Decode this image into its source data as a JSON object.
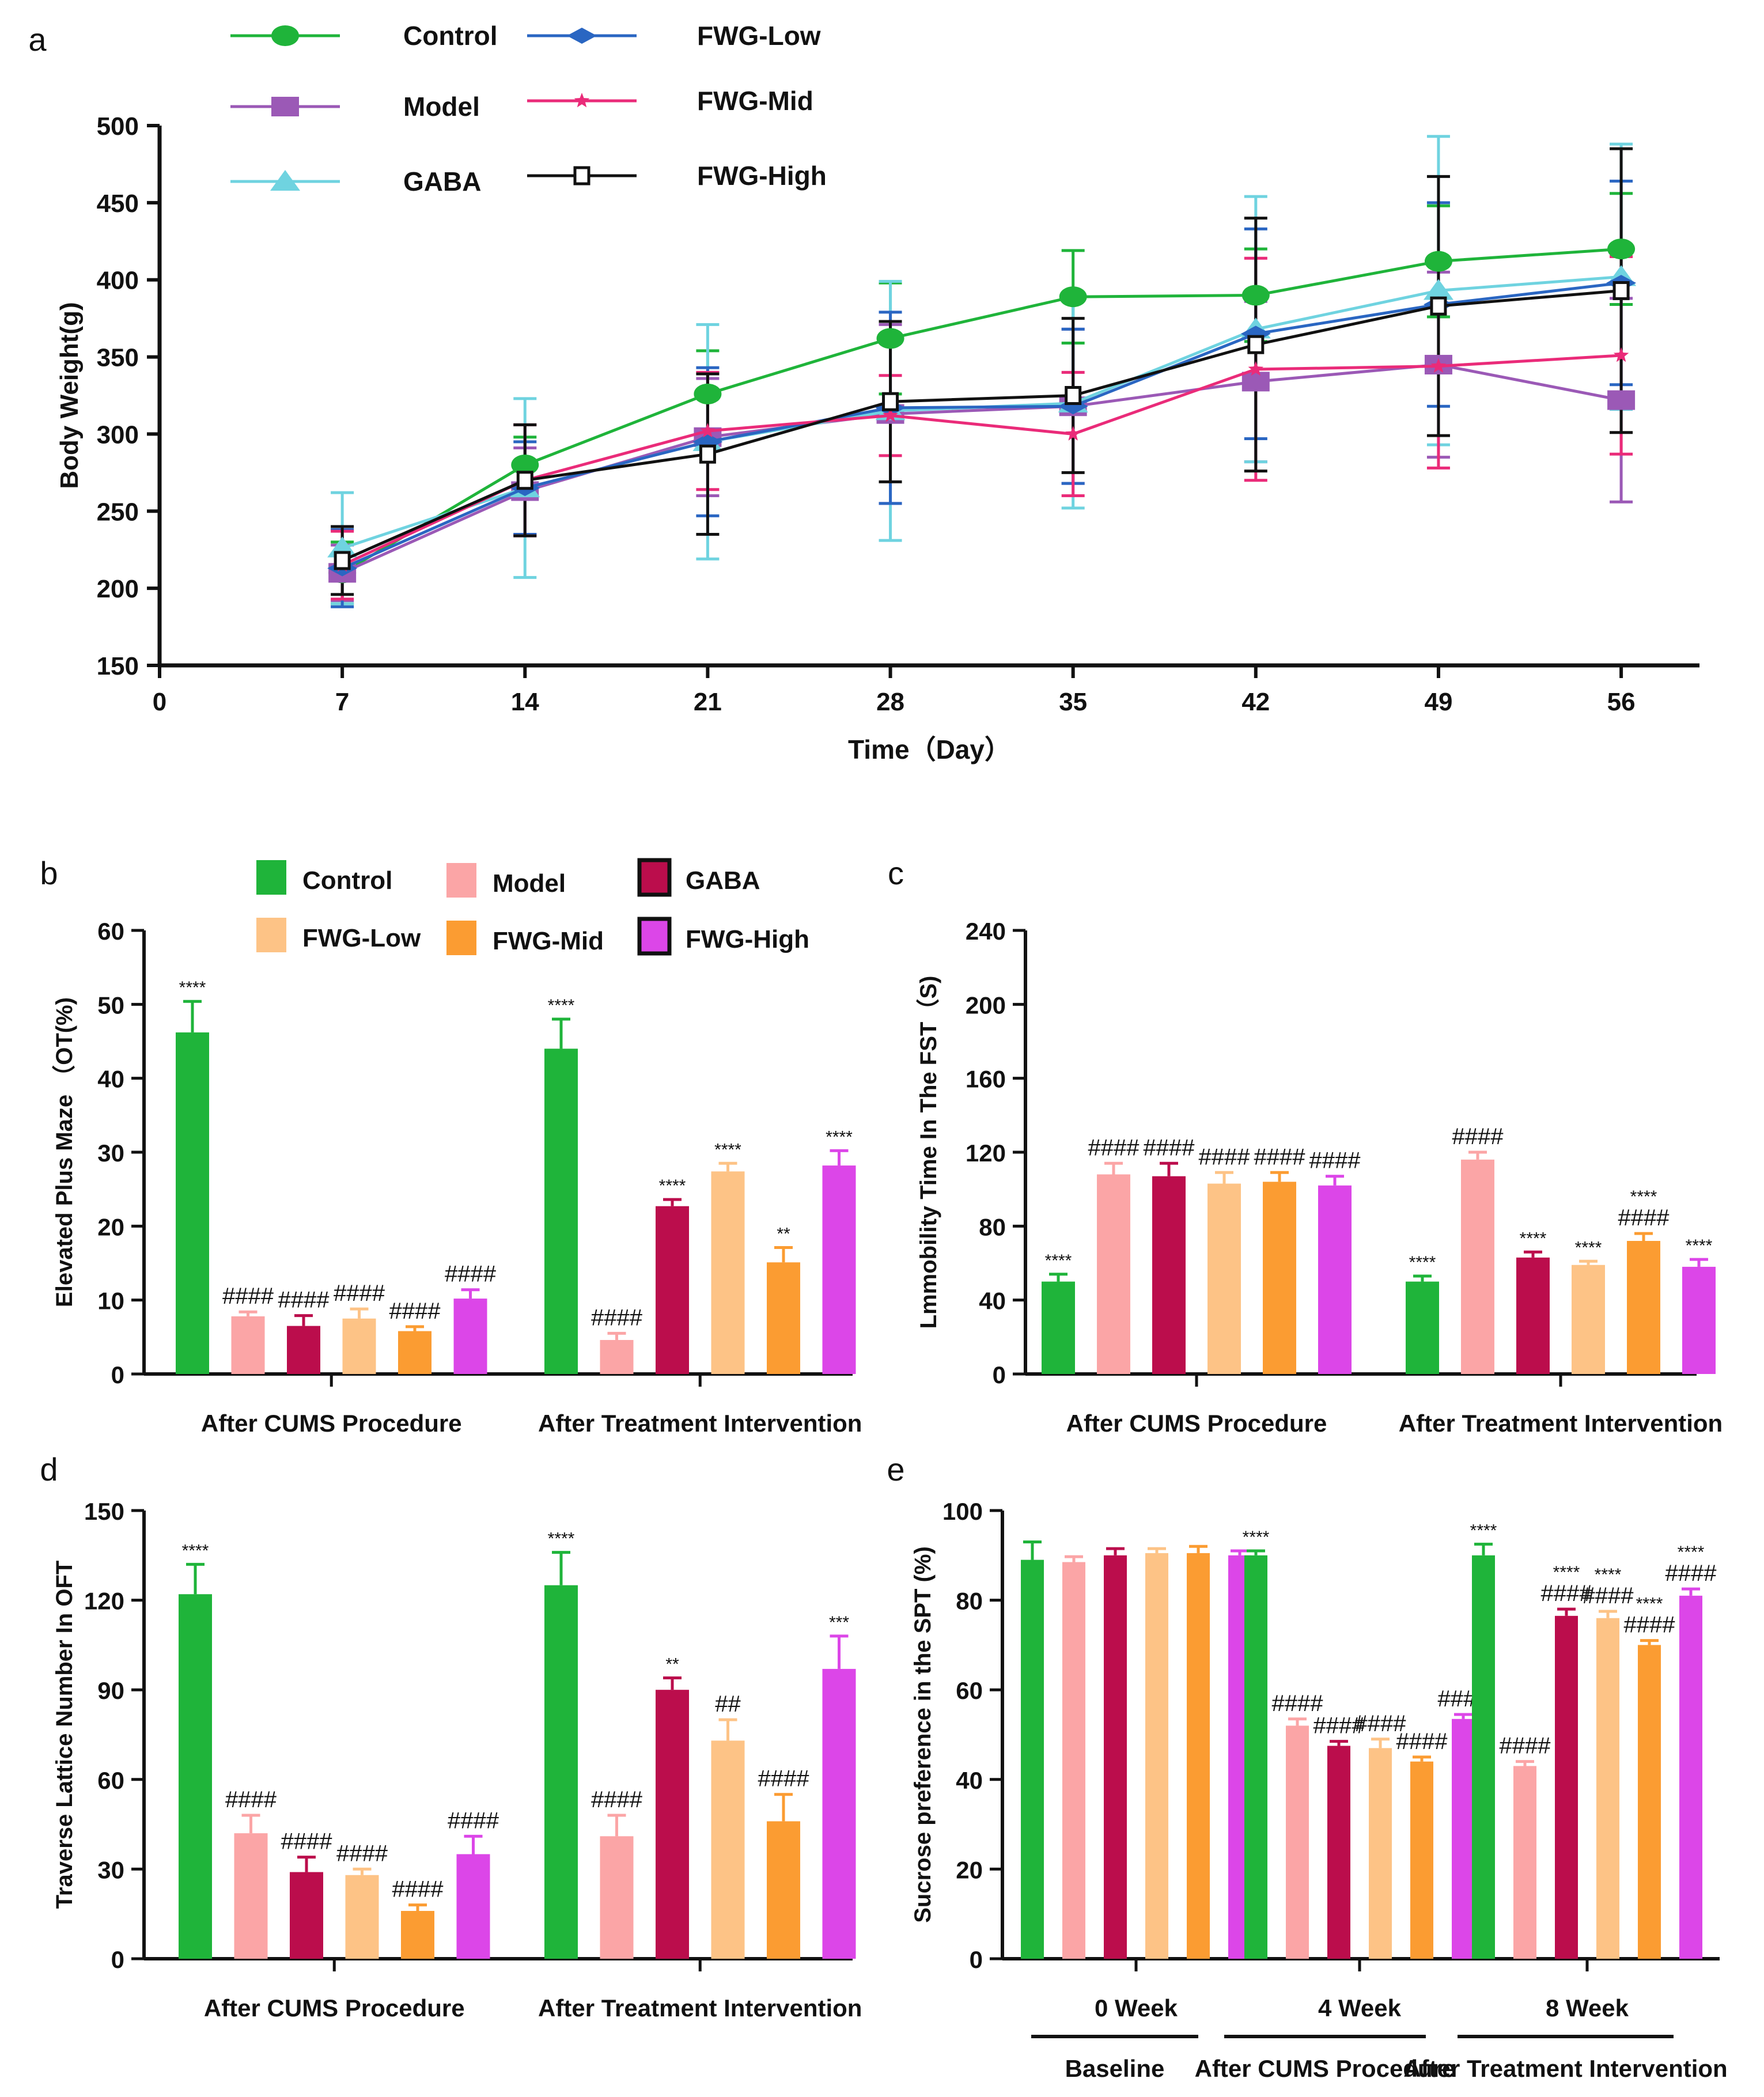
{
  "colors": {
    "Control": "#1fb43a",
    "Model": "#fba5a6",
    "GABA": "#bb0d4c",
    "FWG-Low": "#fdc386",
    "FWG-Mid": "#fb9c32",
    "FWG-High": "#dc46e8",
    "lineControl": "#1fb43a",
    "lineModel": "#9b59b6",
    "lineGABA": "#6fd3e0",
    "lineFWG-Low": "#2a66c2",
    "lineFWG-Mid": "#ea2b79",
    "lineFWG-High": "#111111"
  },
  "chart_data": [
    {
      "panel": "a",
      "type": "line",
      "xlabel": "Time（Day）",
      "ylabel": "Body Weight(g)",
      "xlim": [
        0,
        59
      ],
      "ylim": [
        150,
        500
      ],
      "xticks": [
        0,
        7,
        14,
        21,
        28,
        35,
        42,
        49,
        56
      ],
      "yticks": [
        150,
        200,
        250,
        300,
        350,
        400,
        450,
        500
      ],
      "x": [
        7,
        14,
        21,
        28,
        35,
        42,
        49,
        56
      ],
      "legend": [
        "Control",
        "FWG-Low",
        "Model",
        "FWG-Mid",
        "GABA",
        "FWG-High"
      ],
      "series": [
        {
          "name": "Control",
          "marker": "circle",
          "values": [
            210,
            280,
            326,
            362,
            389,
            390,
            412,
            420
          ],
          "errors": [
            20,
            18,
            28,
            36,
            30,
            30,
            36,
            36
          ]
        },
        {
          "name": "Model",
          "marker": "square",
          "values": [
            210,
            263,
            298,
            313,
            318,
            334,
            345,
            322
          ],
          "errors": [
            18,
            28,
            38,
            58,
            50,
            52,
            60,
            66
          ]
        },
        {
          "name": "GABA",
          "marker": "triangle",
          "values": [
            226,
            265,
            295,
            315,
            320,
            368,
            393,
            402
          ],
          "errors": [
            36,
            58,
            76,
            84,
            68,
            86,
            100,
            86
          ]
        },
        {
          "name": "FWG-Low",
          "marker": "diamond",
          "values": [
            213,
            265,
            295,
            317,
            318,
            365,
            384,
            398
          ],
          "errors": [
            25,
            30,
            48,
            62,
            50,
            68,
            66,
            66
          ]
        },
        {
          "name": "FWG-Mid",
          "marker": "star",
          "values": [
            215,
            270,
            302,
            312,
            300,
            342,
            344,
            351
          ],
          "errors": [
            22,
            36,
            38,
            26,
            40,
            72,
            66,
            64
          ]
        },
        {
          "name": "FWG-High",
          "marker": "open-square",
          "values": [
            218,
            270,
            287,
            321,
            325,
            358,
            383,
            393
          ],
          "errors": [
            22,
            36,
            52,
            52,
            50,
            82,
            84,
            92
          ]
        }
      ]
    },
    {
      "panel": "b",
      "type": "bar",
      "ylabel": "Elevated Plus Maze （OT(%)",
      "ylim": [
        0,
        60
      ],
      "yticks": [
        0,
        10,
        20,
        30,
        40,
        50,
        60
      ],
      "groups": [
        "After CUMS Procedure",
        "After Treatment Intervention"
      ],
      "legend": [
        "Control",
        "Model",
        "GABA",
        "FWG-Low",
        "FWG-Mid",
        "FWG-High"
      ],
      "series": [
        {
          "name": "Control",
          "values": [
            46.2,
            44.0
          ],
          "errors": [
            4.2,
            4.0
          ],
          "labels": [
            "****",
            "****"
          ]
        },
        {
          "name": "Model",
          "values": [
            7.8,
            4.6
          ],
          "errors": [
            0.6,
            0.9
          ],
          "labels": [
            "####",
            "####"
          ]
        },
        {
          "name": "GABA",
          "values": [
            6.5,
            22.7
          ],
          "errors": [
            1.4,
            0.9
          ],
          "labels": [
            "####",
            "****"
          ]
        },
        {
          "name": "FWG-Low",
          "values": [
            7.5,
            27.4
          ],
          "errors": [
            1.3,
            1.1
          ],
          "labels": [
            "####",
            "****"
          ]
        },
        {
          "name": "FWG-Mid",
          "values": [
            5.8,
            15.1
          ],
          "errors": [
            0.6,
            2.0
          ],
          "labels": [
            "####",
            "**"
          ]
        },
        {
          "name": "FWG-High",
          "values": [
            10.2,
            28.2
          ],
          "errors": [
            1.2,
            2.0
          ],
          "labels": [
            "####",
            "****"
          ]
        }
      ]
    },
    {
      "panel": "c",
      "type": "bar",
      "ylabel": "Lmmobility Time In The FST（S)",
      "ylim": [
        0,
        240
      ],
      "yticks": [
        0,
        40,
        80,
        120,
        160,
        200,
        240
      ],
      "groups": [
        "After CUMS Procedure",
        "After Treatment Intervention"
      ],
      "series": [
        {
          "name": "Control",
          "values": [
            50,
            50
          ],
          "errors": [
            4,
            3
          ],
          "labels": [
            "****",
            "****"
          ]
        },
        {
          "name": "Model",
          "values": [
            108,
            116
          ],
          "errors": [
            6,
            4
          ],
          "labels": [
            "####",
            "####"
          ]
        },
        {
          "name": "GABA",
          "values": [
            107,
            63
          ],
          "errors": [
            7,
            3
          ],
          "labels": [
            "####",
            "****"
          ]
        },
        {
          "name": "FWG-Low",
          "values": [
            103,
            59
          ],
          "errors": [
            6,
            2
          ],
          "labels": [
            "####",
            "****"
          ]
        },
        {
          "name": "FWG-Mid",
          "values": [
            104,
            72
          ],
          "errors": [
            5,
            4
          ],
          "labels": [
            "####",
            "****\n####"
          ]
        },
        {
          "name": "FWG-High",
          "values": [
            102,
            58
          ],
          "errors": [
            5,
            4
          ],
          "labels": [
            "####",
            "****"
          ]
        }
      ]
    },
    {
      "panel": "d",
      "type": "bar",
      "ylabel": "Traverse Lattice Number In OFT",
      "ylim": [
        0,
        150
      ],
      "yticks": [
        0,
        30,
        60,
        90,
        120,
        150
      ],
      "groups": [
        "After CUMS Procedure",
        "After Treatment Intervention"
      ],
      "series": [
        {
          "name": "Control",
          "values": [
            122,
            125
          ],
          "errors": [
            10,
            11
          ],
          "labels": [
            "****",
            "****"
          ]
        },
        {
          "name": "Model",
          "values": [
            42,
            41
          ],
          "errors": [
            6,
            7
          ],
          "labels": [
            "####",
            "####"
          ]
        },
        {
          "name": "GABA",
          "values": [
            29,
            90
          ],
          "errors": [
            5,
            4
          ],
          "labels": [
            "####",
            "**"
          ]
        },
        {
          "name": "FWG-Low",
          "values": [
            28,
            73
          ],
          "errors": [
            2,
            7
          ],
          "labels": [
            "####",
            "##"
          ]
        },
        {
          "name": "FWG-Mid",
          "values": [
            16,
            46
          ],
          "errors": [
            2,
            9
          ],
          "labels": [
            "####",
            "####"
          ]
        },
        {
          "name": "FWG-High",
          "values": [
            35,
            97
          ],
          "errors": [
            6,
            11
          ],
          "labels": [
            "####",
            "***"
          ]
        }
      ]
    },
    {
      "panel": "e",
      "type": "bar",
      "ylabel": "Sucrose preference in the SPT (%)",
      "ylim": [
        0,
        100
      ],
      "yticks": [
        0,
        20,
        40,
        60,
        80,
        100
      ],
      "groups": [
        "0 Week",
        "4 Week",
        "8 Week"
      ],
      "phases": [
        "Baseline",
        "After CUMS Procedure",
        "After Treatment Intervention"
      ],
      "series": [
        {
          "name": "Control",
          "values": [
            89,
            90,
            90
          ],
          "errors": [
            4,
            1,
            2.5
          ],
          "labels": [
            "",
            "****",
            "****"
          ]
        },
        {
          "name": "Model",
          "values": [
            88.5,
            52,
            43
          ],
          "errors": [
            1.2,
            1.5,
            1
          ],
          "labels": [
            "",
            "####",
            "####"
          ]
        },
        {
          "name": "GABA",
          "values": [
            90,
            47.5,
            76.5
          ],
          "errors": [
            1.5,
            1,
            1.5
          ],
          "labels": [
            "",
            "####",
            "****\n####"
          ]
        },
        {
          "name": "FWG-Low",
          "values": [
            90.5,
            47,
            76
          ],
          "errors": [
            1,
            2,
            1.5
          ],
          "labels": [
            "",
            "####",
            "****\n####"
          ]
        },
        {
          "name": "FWG-Mid",
          "values": [
            90.5,
            44,
            70
          ],
          "errors": [
            1.5,
            1,
            1
          ],
          "labels": [
            "",
            "####",
            "****\n####"
          ]
        },
        {
          "name": "FWG-High",
          "values": [
            90,
            53.5,
            81
          ],
          "errors": [
            1,
            1,
            1.5
          ],
          "labels": [
            "",
            "####",
            "****\n####"
          ]
        }
      ]
    }
  ]
}
